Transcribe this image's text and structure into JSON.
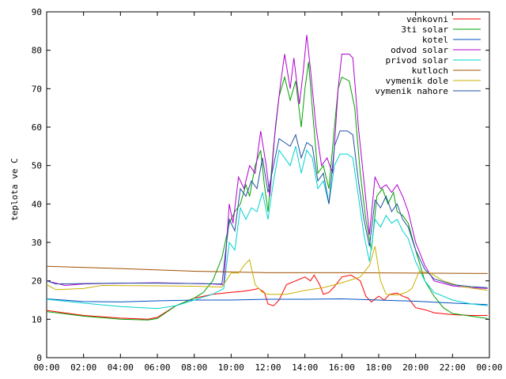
{
  "chart_data": {
    "type": "line",
    "title": "",
    "xlabel": "",
    "ylabel": "teplota ve C",
    "xlim": [
      0,
      24
    ],
    "ylim": [
      0,
      90
    ],
    "yticks": [
      0,
      10,
      20,
      30,
      40,
      50,
      60,
      70,
      80,
      90
    ],
    "xticks": [
      "00:00",
      "02:00",
      "04:00",
      "06:00",
      "08:00",
      "10:00",
      "12:00",
      "14:00",
      "16:00",
      "18:00",
      "20:00",
      "22:00",
      "00:00"
    ],
    "legend_position": "top-right",
    "grid": false,
    "series": [
      {
        "name": "venkovni",
        "color": "#ff0000",
        "points": [
          [
            0,
            12.3
          ],
          [
            2,
            11
          ],
          [
            4,
            10.3
          ],
          [
            5.5,
            10
          ],
          [
            6,
            10.5
          ],
          [
            7,
            13.5
          ],
          [
            8,
            15.5
          ],
          [
            9,
            16.5
          ],
          [
            10,
            17
          ],
          [
            10.5,
            17.2
          ],
          [
            11,
            17.5
          ],
          [
            11.5,
            18
          ],
          [
            11.8,
            17
          ],
          [
            12,
            14
          ],
          [
            12.3,
            13.5
          ],
          [
            12.6,
            15
          ],
          [
            13,
            19
          ],
          [
            13.5,
            20
          ],
          [
            14,
            21
          ],
          [
            14.3,
            20
          ],
          [
            14.5,
            21.5
          ],
          [
            14.8,
            19
          ],
          [
            15,
            16.5
          ],
          [
            15.3,
            17
          ],
          [
            15.6,
            18.5
          ],
          [
            16,
            21
          ],
          [
            16.5,
            21.5
          ],
          [
            17,
            20
          ],
          [
            17.3,
            16
          ],
          [
            17.6,
            14.5
          ],
          [
            18,
            16
          ],
          [
            18.3,
            15
          ],
          [
            18.6,
            16.5
          ],
          [
            19,
            16.8
          ],
          [
            19.3,
            16
          ],
          [
            19.6,
            15.5
          ],
          [
            20,
            13
          ],
          [
            20.5,
            12.5
          ],
          [
            21,
            11.7
          ],
          [
            22,
            11.2
          ],
          [
            23,
            11
          ],
          [
            23.9,
            11
          ]
        ]
      },
      {
        "name": "3ti solar",
        "color": "#00a000",
        "points": [
          [
            0,
            12
          ],
          [
            2,
            10.8
          ],
          [
            4,
            10
          ],
          [
            5.5,
            9.8
          ],
          [
            6,
            10.2
          ],
          [
            7,
            13.5
          ],
          [
            8,
            15.5
          ],
          [
            8.5,
            17
          ],
          [
            9,
            20
          ],
          [
            9.5,
            26
          ],
          [
            9.9,
            35
          ],
          [
            10.2,
            38
          ],
          [
            10.5,
            40
          ],
          [
            10.8,
            45
          ],
          [
            11,
            42
          ],
          [
            11.3,
            50
          ],
          [
            11.6,
            54
          ],
          [
            11.8,
            45
          ],
          [
            12,
            38
          ],
          [
            12.3,
            55
          ],
          [
            12.6,
            68
          ],
          [
            12.9,
            73
          ],
          [
            13.2,
            67
          ],
          [
            13.5,
            72
          ],
          [
            13.8,
            60
          ],
          [
            14,
            70
          ],
          [
            14.2,
            77
          ],
          [
            14.4,
            65
          ],
          [
            14.7,
            48
          ],
          [
            15,
            50
          ],
          [
            15.3,
            44
          ],
          [
            15.6,
            60
          ],
          [
            15.8,
            70
          ],
          [
            16,
            73
          ],
          [
            16.4,
            72
          ],
          [
            16.7,
            65
          ],
          [
            17,
            48
          ],
          [
            17.3,
            36
          ],
          [
            17.6,
            28
          ],
          [
            17.9,
            42
          ],
          [
            18.2,
            44
          ],
          [
            18.5,
            40
          ],
          [
            18.8,
            43
          ],
          [
            19,
            38
          ],
          [
            19.3,
            37
          ],
          [
            19.6,
            35
          ],
          [
            20,
            28
          ],
          [
            20.5,
            20
          ],
          [
            21,
            16
          ],
          [
            21.5,
            13
          ],
          [
            22,
            11.5
          ],
          [
            23,
            10.8
          ],
          [
            23.9,
            10.2
          ]
        ]
      },
      {
        "name": "kotel",
        "color": "#0050c0",
        "points": [
          [
            0,
            15.3
          ],
          [
            2,
            14.6
          ],
          [
            4,
            14.5
          ],
          [
            6,
            14.8
          ],
          [
            8,
            15
          ],
          [
            10,
            15
          ],
          [
            12,
            15.2
          ],
          [
            14,
            15.2
          ],
          [
            16,
            15.3
          ],
          [
            18,
            15
          ],
          [
            20,
            14.7
          ],
          [
            22,
            14.2
          ],
          [
            23.9,
            13.8
          ]
        ]
      },
      {
        "name": "odvod solar",
        "color": "#b000d0",
        "points": [
          [
            0,
            20
          ],
          [
            1,
            18.8
          ],
          [
            2,
            19.2
          ],
          [
            4,
            19.4
          ],
          [
            6,
            19.5
          ],
          [
            8,
            19.3
          ],
          [
            9,
            19.2
          ],
          [
            9.6,
            19
          ],
          [
            9.9,
            40
          ],
          [
            10.1,
            35
          ],
          [
            10.4,
            47
          ],
          [
            10.7,
            44
          ],
          [
            11,
            50
          ],
          [
            11.3,
            48
          ],
          [
            11.6,
            59
          ],
          [
            11.9,
            50
          ],
          [
            12.1,
            42
          ],
          [
            12.4,
            60
          ],
          [
            12.7,
            72
          ],
          [
            12.9,
            79
          ],
          [
            13.2,
            70
          ],
          [
            13.4,
            78
          ],
          [
            13.7,
            66
          ],
          [
            13.9,
            74
          ],
          [
            14.1,
            84
          ],
          [
            14.3,
            75
          ],
          [
            14.6,
            60
          ],
          [
            14.9,
            50
          ],
          [
            15.2,
            52
          ],
          [
            15.5,
            48
          ],
          [
            15.8,
            70
          ],
          [
            16,
            79
          ],
          [
            16.4,
            79
          ],
          [
            16.6,
            78
          ],
          [
            16.9,
            60
          ],
          [
            17.2,
            46
          ],
          [
            17.5,
            32
          ],
          [
            17.8,
            47
          ],
          [
            18.1,
            44
          ],
          [
            18.4,
            45
          ],
          [
            18.7,
            43
          ],
          [
            19,
            45
          ],
          [
            19.3,
            42
          ],
          [
            19.6,
            38
          ],
          [
            20,
            30
          ],
          [
            20.5,
            24
          ],
          [
            21,
            20
          ],
          [
            22,
            18.7
          ],
          [
            23,
            18.2
          ],
          [
            23.9,
            18
          ]
        ]
      },
      {
        "name": "privod solar",
        "color": "#00d0d0",
        "points": [
          [
            0,
            15.2
          ],
          [
            2,
            14.2
          ],
          [
            4,
            13.3
          ],
          [
            6,
            12.8
          ],
          [
            7,
            13.5
          ],
          [
            8,
            15
          ],
          [
            9,
            16.5
          ],
          [
            9.6,
            18
          ],
          [
            9.9,
            30
          ],
          [
            10.2,
            28
          ],
          [
            10.5,
            39
          ],
          [
            10.8,
            36
          ],
          [
            11.1,
            39
          ],
          [
            11.4,
            38
          ],
          [
            11.7,
            43
          ],
          [
            12,
            36
          ],
          [
            12.3,
            46
          ],
          [
            12.6,
            54
          ],
          [
            12.9,
            52
          ],
          [
            13.2,
            50
          ],
          [
            13.5,
            55
          ],
          [
            13.8,
            48
          ],
          [
            14.1,
            54
          ],
          [
            14.4,
            52
          ],
          [
            14.7,
            44
          ],
          [
            15,
            46
          ],
          [
            15.3,
            40
          ],
          [
            15.6,
            50
          ],
          [
            15.9,
            53
          ],
          [
            16.3,
            53
          ],
          [
            16.6,
            52
          ],
          [
            16.9,
            42
          ],
          [
            17.2,
            32
          ],
          [
            17.5,
            25
          ],
          [
            17.8,
            36
          ],
          [
            18.1,
            34
          ],
          [
            18.4,
            37
          ],
          [
            18.7,
            35
          ],
          [
            19,
            36
          ],
          [
            19.3,
            33
          ],
          [
            19.6,
            31
          ],
          [
            20,
            25
          ],
          [
            20.5,
            20
          ],
          [
            21,
            17
          ],
          [
            22,
            15
          ],
          [
            23,
            14
          ],
          [
            23.9,
            13.5
          ]
        ]
      },
      {
        "name": "kutloch",
        "color": "#a05000",
        "points": [
          [
            0,
            23.8
          ],
          [
            4,
            23.2
          ],
          [
            8,
            22.5
          ],
          [
            12,
            22.1
          ],
          [
            16,
            22.1
          ],
          [
            20,
            22
          ],
          [
            23.9,
            21.9
          ]
        ]
      },
      {
        "name": "vymenik dole",
        "color": "#c8b000",
        "points": [
          [
            0,
            19
          ],
          [
            0.5,
            17.7
          ],
          [
            2,
            18
          ],
          [
            3,
            18.8
          ],
          [
            6,
            18.7
          ],
          [
            8,
            18.6
          ],
          [
            9.5,
            18.4
          ],
          [
            10,
            22
          ],
          [
            10.4,
            22
          ],
          [
            10.7,
            24
          ],
          [
            11,
            25.5
          ],
          [
            11.3,
            19
          ],
          [
            11.7,
            17
          ],
          [
            12,
            16.5
          ],
          [
            13,
            16.5
          ],
          [
            14,
            17.5
          ],
          [
            15,
            18.2
          ],
          [
            16,
            19.5
          ],
          [
            17,
            21
          ],
          [
            17.5,
            24
          ],
          [
            17.8,
            29
          ],
          [
            18.1,
            20
          ],
          [
            18.4,
            16.5
          ],
          [
            19,
            16.3
          ],
          [
            19.5,
            17
          ],
          [
            19.8,
            18
          ],
          [
            20.2,
            22.5
          ],
          [
            20.8,
            22
          ],
          [
            21.5,
            20
          ],
          [
            22.5,
            18.5
          ],
          [
            23.5,
            17.8
          ],
          [
            23.9,
            17.5
          ]
        ]
      },
      {
        "name": "vymenik nahore",
        "color": "#2050a0",
        "points": [
          [
            0,
            20
          ],
          [
            0.5,
            19.2
          ],
          [
            2,
            19.3
          ],
          [
            4,
            19.4
          ],
          [
            6,
            19.4
          ],
          [
            8,
            19.3
          ],
          [
            9.5,
            19.2
          ],
          [
            9.9,
            36
          ],
          [
            10.2,
            33
          ],
          [
            10.5,
            44
          ],
          [
            10.8,
            42
          ],
          [
            11.1,
            46
          ],
          [
            11.4,
            44
          ],
          [
            11.7,
            52
          ],
          [
            12,
            43
          ],
          [
            12.3,
            50
          ],
          [
            12.6,
            57
          ],
          [
            12.9,
            56
          ],
          [
            13.2,
            55
          ],
          [
            13.5,
            58
          ],
          [
            13.8,
            52
          ],
          [
            14.1,
            56
          ],
          [
            14.4,
            55
          ],
          [
            14.7,
            46
          ],
          [
            15,
            48
          ],
          [
            15.3,
            40
          ],
          [
            15.6,
            55
          ],
          [
            15.9,
            59
          ],
          [
            16.3,
            59
          ],
          [
            16.6,
            58
          ],
          [
            16.9,
            46
          ],
          [
            17.2,
            36
          ],
          [
            17.5,
            29
          ],
          [
            17.8,
            41
          ],
          [
            18.1,
            39
          ],
          [
            18.4,
            42
          ],
          [
            18.7,
            38
          ],
          [
            19,
            40
          ],
          [
            19.3,
            36
          ],
          [
            19.6,
            34
          ],
          [
            20,
            28
          ],
          [
            20.5,
            23
          ],
          [
            21,
            20.5
          ],
          [
            22,
            19
          ],
          [
            23,
            18.5
          ],
          [
            23.9,
            18.2
          ]
        ]
      }
    ]
  }
}
